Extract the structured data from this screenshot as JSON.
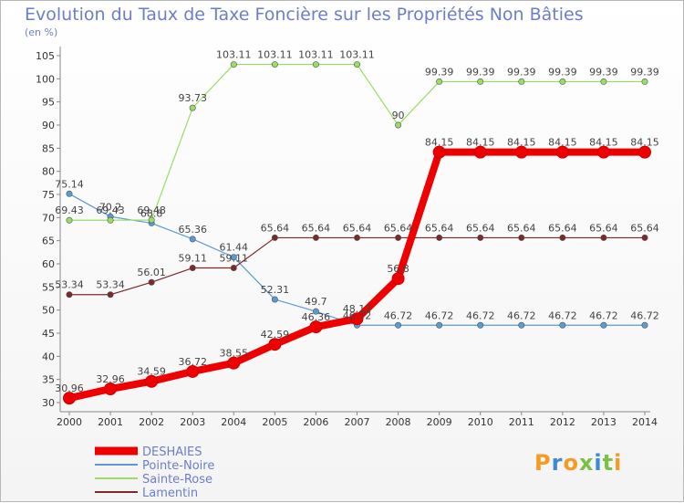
{
  "chart_data": {
    "type": "line",
    "title": "Evolution du Taux de Taxe Foncière sur les Propriétés Non Bâties",
    "ylabel": "(en %)",
    "xlabel": "",
    "ylim": [
      30,
      105
    ],
    "y_ticks": [
      30,
      35,
      40,
      45,
      50,
      55,
      60,
      65,
      70,
      75,
      80,
      85,
      90,
      95,
      100,
      105
    ],
    "x": [
      "2000",
      "2001",
      "2002",
      "2003",
      "2004",
      "2005",
      "2006",
      "2007",
      "2008",
      "2009",
      "2010",
      "2011",
      "2012",
      "2013",
      "2014"
    ],
    "series": [
      {
        "name": "DESHAIES",
        "color": "#ee0000",
        "values": [
          30.96,
          32.96,
          34.59,
          36.72,
          38.55,
          42.59,
          46.36,
          48.12,
          56.8,
          84.15,
          84.15,
          84.15,
          84.15,
          84.15,
          84.15
        ],
        "labels": [
          "30.96",
          "32.96",
          "34.59",
          "36.72",
          "38.55",
          "42.59",
          "46.36",
          "48.12",
          "56.8",
          "84.15",
          "84.15",
          "84.15",
          "84.15",
          "84.15",
          "84.15"
        ]
      },
      {
        "name": "Pointe-Noire",
        "color": "#5b9bd5",
        "values": [
          75.14,
          70.2,
          68.8,
          65.36,
          61.44,
          52.31,
          49.7,
          46.72,
          46.72,
          46.72,
          46.72,
          46.72,
          46.72,
          46.72,
          46.72
        ],
        "labels": [
          "75.14",
          "70.2",
          "68.8",
          "65.36",
          "61.44",
          "52.31",
          "49.7",
          "46.72",
          "46.72",
          "46.72",
          "46.72",
          "46.72",
          "46.72",
          "46.72",
          "46.72"
        ]
      },
      {
        "name": "Sainte-Rose",
        "color": "#99dd66",
        "values": [
          69.43,
          69.43,
          69.48,
          93.73,
          103.11,
          103.11,
          103.11,
          103.11,
          90,
          99.39,
          99.39,
          99.39,
          99.39,
          99.39,
          99.39
        ],
        "labels": [
          "69.43",
          "69.43",
          "69.48",
          "93.73",
          "103.11",
          "103.11",
          "103.11",
          "103.11",
          "90",
          "99.39",
          "99.39",
          "99.39",
          "99.39",
          "99.39",
          "99.39"
        ]
      },
      {
        "name": "Lamentin",
        "color": "#7a2a2a",
        "values": [
          53.34,
          53.34,
          56.01,
          59.11,
          59.11,
          65.64,
          65.64,
          65.64,
          65.64,
          65.64,
          65.64,
          65.64,
          65.64,
          65.64,
          65.64
        ],
        "labels": [
          "53.34",
          "53.34",
          "56.01",
          "59.11",
          "59.11",
          "65.64",
          "65.64",
          "65.64",
          "65.64",
          "65.64",
          "65.64",
          "65.64",
          "65.64",
          "65.64",
          "65.64"
        ]
      }
    ],
    "legend": [
      "DESHAIES",
      "Pointe-Noire",
      "Sainte-Rose",
      "Lamentin"
    ],
    "legend_position": "bottom-left",
    "grid": false
  },
  "logo": {
    "text": "Proxiti"
  }
}
